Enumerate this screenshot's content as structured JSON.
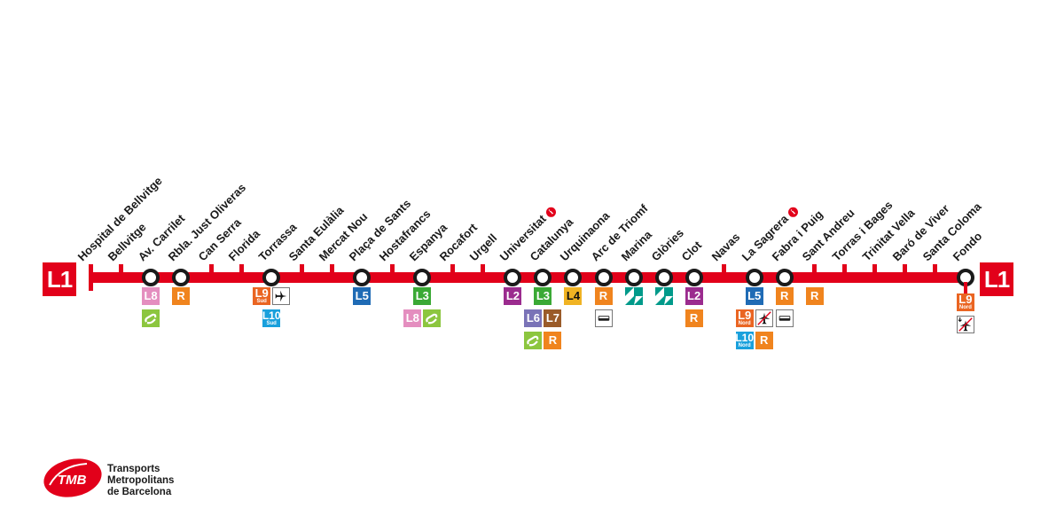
{
  "line": {
    "label": "L1",
    "color": "#e2001a"
  },
  "colors": {
    "L2": "#9b2b8e",
    "L3": "#3aa935",
    "L4": "#f0b323",
    "L5": "#1f6bb5",
    "L6": "#7a73b7",
    "L7": "#9a5b29",
    "L8": "#e48ebf",
    "L9": "#ea6522",
    "L10": "#19a0dc",
    "R": "#f0841e",
    "tram": "#8cc63f",
    "trambesos": "#009a8a"
  },
  "stations": [
    {
      "name": "Hospital de Bellvitge",
      "interchange": false,
      "connections": []
    },
    {
      "name": "Bellvitge",
      "interchange": false,
      "connections": []
    },
    {
      "name": "Av. Carrilet",
      "interchange": true,
      "connections": [
        [
          {
            "t": "L8"
          }
        ],
        [
          {
            "t": "tram",
            "icon": "tram-icon"
          }
        ]
      ]
    },
    {
      "name": "Rbla. Just Oliveras",
      "interchange": true,
      "connections": [
        [
          {
            "t": "R"
          }
        ]
      ]
    },
    {
      "name": "Can Serra",
      "interchange": false,
      "connections": []
    },
    {
      "name": "Florida",
      "interchange": false,
      "connections": []
    },
    {
      "name": "Torrassa",
      "interchange": true,
      "connections": [
        [
          {
            "t": "L9",
            "sub": "Sud"
          },
          {
            "t": "airport",
            "icon": "airplane-icon"
          }
        ],
        [
          {
            "t": "L10",
            "sub": "Sud"
          }
        ]
      ]
    },
    {
      "name": "Santa Eulàlia",
      "interchange": false,
      "connections": []
    },
    {
      "name": "Mercat Nou",
      "interchange": false,
      "connections": []
    },
    {
      "name": "Plaça de Sants",
      "interchange": true,
      "connections": [
        [
          {
            "t": "L5"
          }
        ]
      ]
    },
    {
      "name": "Hostafrancs",
      "interchange": false,
      "connections": []
    },
    {
      "name": "Espanya",
      "interchange": true,
      "connections": [
        [
          {
            "t": "L3"
          }
        ],
        [
          {
            "t": "L8"
          },
          {
            "t": "tram",
            "icon": "tram-icon"
          }
        ]
      ]
    },
    {
      "name": "Rocafort",
      "interchange": false,
      "connections": []
    },
    {
      "name": "Urgell",
      "interchange": false,
      "connections": []
    },
    {
      "name": "Universitat",
      "interchange": true,
      "info": "i",
      "connections": [
        [
          {
            "t": "L2"
          }
        ]
      ]
    },
    {
      "name": "Catalunya",
      "interchange": true,
      "connections": [
        [
          {
            "t": "L3"
          }
        ],
        [
          {
            "t": "L6"
          },
          {
            "t": "L7"
          }
        ],
        [
          {
            "t": "tram",
            "icon": "tram-icon"
          },
          {
            "t": "R"
          }
        ]
      ]
    },
    {
      "name": "Urquinaona",
      "interchange": true,
      "connections": [
        [
          {
            "t": "L4"
          }
        ]
      ]
    },
    {
      "name": "Arc de Triomf",
      "interchange": true,
      "connections": [
        [
          {
            "t": "R"
          }
        ],
        [
          {
            "t": "bus",
            "icon": "bus-icon"
          }
        ]
      ]
    },
    {
      "name": "Marina",
      "interchange": true,
      "connections": [
        [
          {
            "t": "trambesos",
            "icon": "trambesos-icon"
          }
        ]
      ]
    },
    {
      "name": "Glòries",
      "interchange": true,
      "connections": [
        [
          {
            "t": "trambesos",
            "icon": "trambesos-icon"
          }
        ]
      ]
    },
    {
      "name": "Clot",
      "interchange": true,
      "connections": [
        [
          {
            "t": "L2"
          }
        ],
        [
          {
            "t": "R"
          }
        ]
      ]
    },
    {
      "name": "Navas",
      "interchange": false,
      "connections": []
    },
    {
      "name": "La Sagrera",
      "interchange": true,
      "info": "i",
      "connections": [
        [
          {
            "t": "L5"
          }
        ],
        [
          {
            "t": "L9",
            "sub": "Nord"
          },
          {
            "t": "no-airport",
            "icon": "no-airplane-icon"
          }
        ],
        [
          {
            "t": "L10",
            "sub": "Nord"
          },
          {
            "t": "R"
          }
        ]
      ]
    },
    {
      "name": "Fabra i Puig",
      "interchange": true,
      "connections": [
        [
          {
            "t": "R"
          }
        ],
        [
          {
            "t": "bus",
            "icon": "bus-icon"
          }
        ]
      ]
    },
    {
      "name": "Sant Andreu",
      "interchange": false,
      "connections": [
        [
          {
            "t": "R"
          }
        ]
      ]
    },
    {
      "name": "Torras i Bages",
      "interchange": false,
      "connections": []
    },
    {
      "name": "Trinitat Vella",
      "interchange": false,
      "connections": []
    },
    {
      "name": "Baró de Viver",
      "interchange": false,
      "connections": []
    },
    {
      "name": "Santa Coloma",
      "interchange": false,
      "connections": []
    },
    {
      "name": "Fondo",
      "interchange": true,
      "connections": [
        [
          {
            "t": "L9",
            "sub": "Nord"
          }
        ],
        [
          {
            "t": "no-airport-down",
            "icon": "no-airplane-icon"
          }
        ]
      ]
    }
  ],
  "logo": {
    "text": "TMB",
    "lines": [
      "Transports",
      "Metropolitans",
      "de Barcelona"
    ]
  }
}
